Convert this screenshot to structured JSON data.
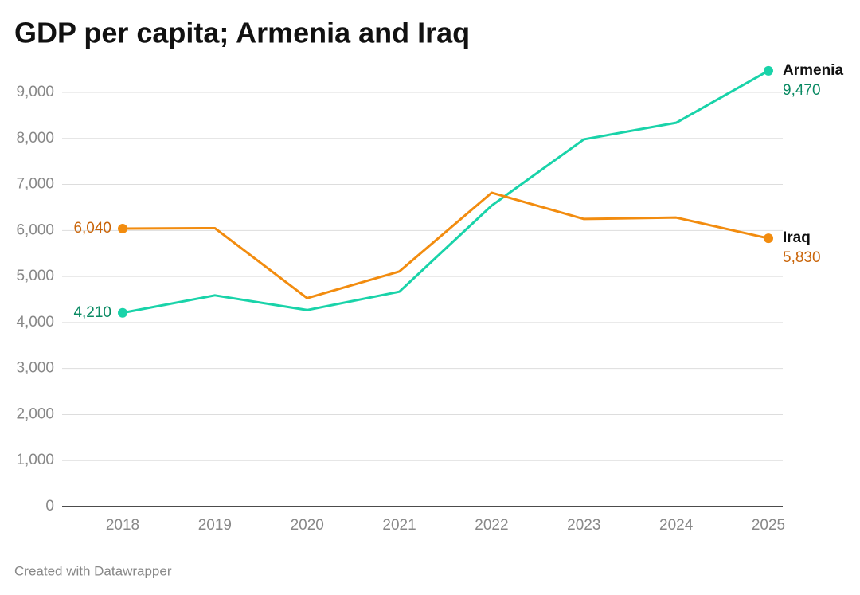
{
  "chart_data": {
    "type": "line",
    "title": "GDP per capita; Armenia and Iraq",
    "source": "Created with Datawrapper",
    "categories": [
      "2018",
      "2019",
      "2020",
      "2021",
      "2022",
      "2023",
      "2024",
      "2025"
    ],
    "series": [
      {
        "name": "Armenia",
        "color": "#19d3a9",
        "label_color": "#0a8a63",
        "values": [
          4210,
          4590,
          4270,
          4670,
          6540,
          7980,
          8340,
          9470
        ],
        "value_labels": [
          "4,210",
          null,
          null,
          null,
          null,
          null,
          null,
          "9,470"
        ]
      },
      {
        "name": "Iraq",
        "color": "#f28c0f",
        "label_color": "#c9650a",
        "values": [
          6040,
          6050,
          4530,
          5110,
          6820,
          6250,
          6280,
          5830
        ],
        "value_labels": [
          "6,040",
          null,
          null,
          null,
          null,
          null,
          null,
          "5,830"
        ]
      }
    ],
    "ylim": [
      0,
      9000
    ],
    "yticks": [
      0,
      {
        "value": 1000,
        "label": "1,000"
      },
      {
        "value": 2000,
        "label": "2,000"
      },
      {
        "value": 3000,
        "label": "3,000"
      },
      {
        "value": 4000,
        "label": "4,000"
      },
      {
        "value": 5000,
        "label": "5,000"
      },
      {
        "value": 6000,
        "label": "6,000"
      },
      {
        "value": 7000,
        "label": "7,000"
      },
      {
        "value": 8000,
        "label": "8,000"
      },
      {
        "value": 9000,
        "label": "9,000"
      }
    ],
    "grid": true
  }
}
